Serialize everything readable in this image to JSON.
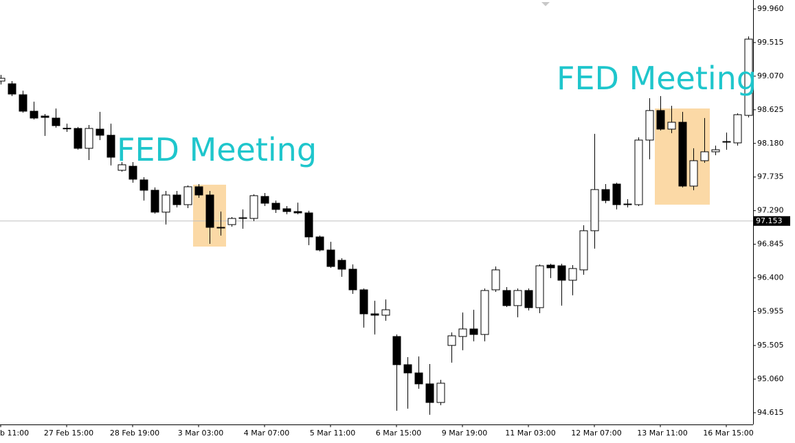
{
  "chart_data": {
    "type": "candlestick",
    "categories": [
      "b 11:00",
      null,
      null,
      null,
      null,
      null,
      "27 Feb 15:00",
      null,
      null,
      null,
      null,
      null,
      "28 Feb 19:00",
      null,
      null,
      null,
      null,
      null,
      "3 Mar 03:00",
      null,
      null,
      null,
      null,
      null,
      "4 Mar 07:00",
      null,
      null,
      null,
      null,
      null,
      "5 Mar 11:00",
      null,
      null,
      null,
      null,
      null,
      "6 Mar 15:00",
      null,
      null,
      null,
      null,
      null,
      "9 Mar 19:00",
      null,
      null,
      null,
      null,
      null,
      "11 Mar 03:00",
      null,
      null,
      null,
      null,
      null,
      "12 Mar 07:00",
      null,
      null,
      null,
      null,
      null,
      "13 Mar 11:00",
      null,
      null,
      null,
      null,
      null,
      "16 Mar 15:00",
      null,
      null
    ],
    "open": [
      99.005,
      98.969,
      98.824,
      98.606,
      98.542,
      98.515,
      98.381,
      98.378,
      98.115,
      98.369,
      98.288,
      97.824,
      97.878,
      97.697,
      97.56,
      97.27,
      97.497,
      97.369,
      97.606,
      97.497,
      97.069,
      97.105,
      97.187,
      97.187,
      97.478,
      97.388,
      97.315,
      97.278,
      97.26,
      96.942,
      96.769,
      96.633,
      96.515,
      96.242,
      95.924,
      95.906,
      95.624,
      95.251,
      95.142,
      94.997,
      94.751,
      95.506,
      95.624,
      95.724,
      95.651,
      96.242,
      96.233,
      96.033,
      96.233,
      96.006,
      96.569,
      96.56,
      96.369,
      96.506,
      97.024,
      97.569,
      97.642,
      97.378,
      97.369,
      98.224,
      98.615,
      98.369,
      98.46,
      97.615,
      97.951,
      98.069,
      98.196,
      98.187,
      98.551
    ],
    "high": [
      99.087,
      99.005,
      98.878,
      98.733,
      98.569,
      98.642,
      98.442,
      98.397,
      98.424,
      98.597,
      98.442,
      97.933,
      97.933,
      97.733,
      97.597,
      97.551,
      97.551,
      97.624,
      97.642,
      97.551,
      97.278,
      97.205,
      97.306,
      97.506,
      97.524,
      97.424,
      97.351,
      97.396,
      97.288,
      96.96,
      96.878,
      96.66,
      96.578,
      96.26,
      96.097,
      96.115,
      95.651,
      95.351,
      95.36,
      95.26,
      95.051,
      95.678,
      95.942,
      95.978,
      96.26,
      96.551,
      96.278,
      96.26,
      96.26,
      96.578,
      96.587,
      96.587,
      96.569,
      97.096,
      98.306,
      97.642,
      97.66,
      97.442,
      98.26,
      98.778,
      98.806,
      98.678,
      98.597,
      98.115,
      98.515,
      98.151,
      98.324,
      98.578,
      99.596
    ],
    "low": [
      98.96,
      98.806,
      98.587,
      98.497,
      98.279,
      98.388,
      98.333,
      98.097,
      97.96,
      98.224,
      97.888,
      97.806,
      97.66,
      97.424,
      97.251,
      97.106,
      97.333,
      97.324,
      97.46,
      96.851,
      96.96,
      97.078,
      97.051,
      97.151,
      97.351,
      97.26,
      97.242,
      97.242,
      96.833,
      96.751,
      96.533,
      96.415,
      96.188,
      95.742,
      95.651,
      95.833,
      94.642,
      94.669,
      94.933,
      94.588,
      94.715,
      95.278,
      95.442,
      95.56,
      95.56,
      96.215,
      96.015,
      95.878,
      95.969,
      95.933,
      96.397,
      96.033,
      96.169,
      96.442,
      96.787,
      97.388,
      97.306,
      97.333,
      97.351,
      97.969,
      98.351,
      98.315,
      97.597,
      97.56,
      97.924,
      98.024,
      98.096,
      98.151,
      98.524
    ],
    "close": [
      99.042,
      98.833,
      98.606,
      98.515,
      98.524,
      98.415,
      98.378,
      98.115,
      98.378,
      98.288,
      97.997,
      97.897,
      97.706,
      97.56,
      97.27,
      97.497,
      97.369,
      97.606,
      97.497,
      97.069,
      97.06,
      97.187,
      97.196,
      97.488,
      97.388,
      97.306,
      97.278,
      97.26,
      96.942,
      96.769,
      96.551,
      96.515,
      96.242,
      95.924,
      95.906,
      95.978,
      95.251,
      95.142,
      94.997,
      94.751,
      95.006,
      95.633,
      95.724,
      95.651,
      96.233,
      96.506,
      96.033,
      96.233,
      96.006,
      96.56,
      96.533,
      96.369,
      96.524,
      97.024,
      97.569,
      97.424,
      97.369,
      97.369,
      98.224,
      98.615,
      98.369,
      98.46,
      97.615,
      97.951,
      98.069,
      98.096,
      98.205,
      98.56,
      99.56
    ],
    "up_color": "#ffffff",
    "down_color": "#000000",
    "ylim": [
      94.46,
      100.078
    ],
    "yticks": [
      {
        "value": 99.96,
        "label": "99.960"
      },
      {
        "value": 99.515,
        "label": "99.515"
      },
      {
        "value": 99.07,
        "label": "99.070"
      },
      {
        "value": 98.625,
        "label": "98.625"
      },
      {
        "value": 98.18,
        "label": "98.180"
      },
      {
        "value": 97.735,
        "label": "97.735"
      },
      {
        "value": 97.29,
        "label": "97.290"
      },
      {
        "value": 96.845,
        "label": "96.845"
      },
      {
        "value": 96.4,
        "label": "96.400"
      },
      {
        "value": 95.955,
        "label": "95.955"
      },
      {
        "value": 95.505,
        "label": "95.505"
      },
      {
        "value": 95.06,
        "label": "95.060"
      },
      {
        "value": 94.615,
        "label": "94.615"
      }
    ],
    "current_price": 97.153,
    "annotations": [
      {
        "text": "FED Meeting",
        "color": "#1fc6cc"
      },
      {
        "text": "FED Meeting",
        "color": "#1fc6cc"
      }
    ],
    "highlight_color": "#fbd9a6"
  }
}
